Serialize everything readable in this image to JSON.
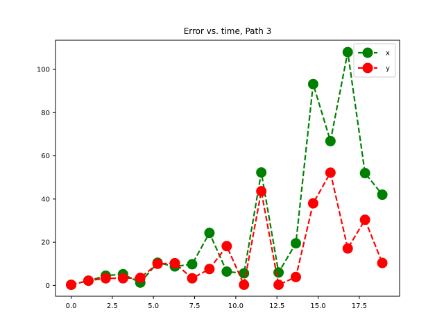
{
  "chart_data": {
    "type": "line",
    "title": "Error vs. time, Path 3",
    "xlabel": "",
    "ylabel": "",
    "xlim": [
      -0.95,
      19.95
    ],
    "ylim": [
      -5,
      113.5
    ],
    "xticks": [
      0.0,
      2.5,
      5.0,
      7.5,
      10.0,
      12.5,
      15.0,
      17.5
    ],
    "xtick_labels": [
      "0.0",
      "2.5",
      "5.0",
      "7.5",
      "10.0",
      "12.5",
      "15.0",
      "17.5"
    ],
    "yticks": [
      0,
      20,
      40,
      60,
      80,
      100
    ],
    "ytick_labels": [
      "0",
      "20",
      "40",
      "60",
      "80",
      "100"
    ],
    "grid": false,
    "legend_position": "top-right",
    "x": [
      0,
      1.05,
      2.1,
      3.15,
      4.2,
      5.25,
      6.3,
      7.35,
      8.4,
      9.45,
      10.5,
      11.55,
      12.6,
      13.65,
      14.7,
      15.75,
      16.8,
      17.85,
      18.9
    ],
    "series": [
      {
        "name": "x",
        "color": "#008000",
        "linestyle": "dashed",
        "marker": "circle",
        "values": [
          0.3,
          2.2,
          4.5,
          5.2,
          1.3,
          10.5,
          8.8,
          9.8,
          24.3,
          6.4,
          5.6,
          52.3,
          6.0,
          19.5,
          93.2,
          66.8,
          108.0,
          52.0,
          42.0
        ]
      },
      {
        "name": "y",
        "color": "#ff0000",
        "linestyle": "dashed",
        "marker": "circle",
        "values": [
          0.3,
          2.2,
          3.3,
          3.3,
          3.5,
          10.0,
          10.3,
          3.3,
          7.6,
          18.2,
          0.3,
          43.6,
          0.3,
          3.9,
          38.0,
          52.2,
          17.1,
          30.4,
          10.4
        ]
      }
    ]
  }
}
